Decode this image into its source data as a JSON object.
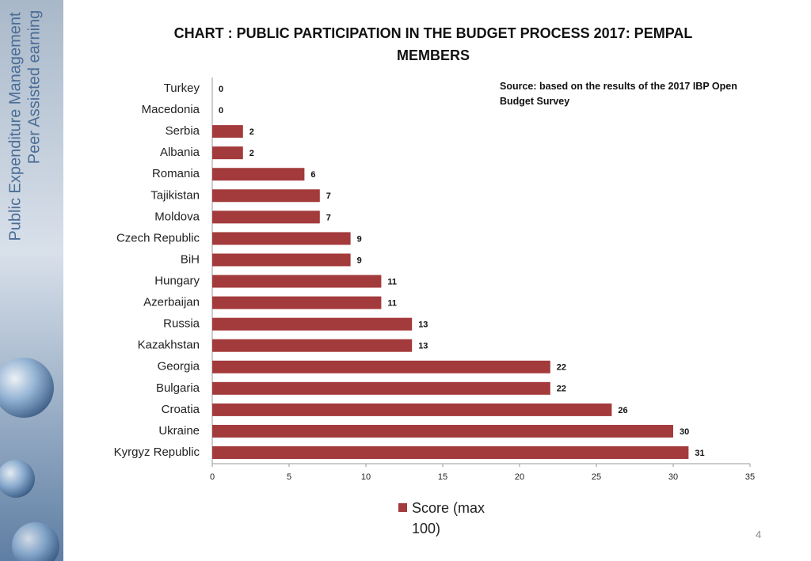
{
  "sidebar": {
    "line1": "Public Expenditure Management",
    "line2": "Peer Assisted earning"
  },
  "page_number": "4",
  "chart_data": {
    "type": "hbar",
    "title": "CHART : PUBLIC PARTICIPATION IN THE BUDGET PROCESS 2017: PEMPAL MEMBERS",
    "annotation": "Source: based on the results of the 2017 IBP Open Budget Survey",
    "categories": [
      "Turkey",
      "Macedonia",
      "Serbia",
      "Albania",
      "Romania",
      "Tajikistan",
      "Moldova",
      "Czech Republic",
      "BiH",
      "Hungary",
      "Azerbaijan",
      "Russia",
      "Kazakhstan",
      "Georgia",
      "Bulgaria",
      "Croatia",
      "Ukraine",
      "Kyrgyz Republic"
    ],
    "series": [
      {
        "name": "Score (max 100)",
        "color": "#a33a3b",
        "values": [
          0,
          0,
          2,
          2,
          6,
          7,
          7,
          9,
          9,
          11,
          11,
          13,
          13,
          22,
          22,
          26,
          30,
          31
        ]
      }
    ],
    "xlim": [
      0,
      35
    ],
    "xticks": [
      0,
      5,
      10,
      15,
      20,
      25,
      30,
      35
    ],
    "grid": false,
    "legend": "bottom"
  }
}
